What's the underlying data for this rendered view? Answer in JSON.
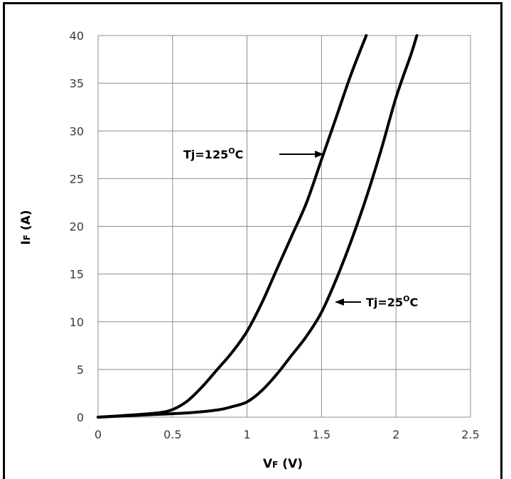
{
  "chart_data": {
    "type": "line",
    "title": "",
    "xlabel_main": "V",
    "xlabel_sub": "F",
    "xlabel_unit": " (V)",
    "ylabel_main": "I",
    "ylabel_sub": "F",
    "ylabel_unit": " (A)",
    "xlim": [
      0,
      2.5
    ],
    "ylim": [
      0,
      40
    ],
    "x_ticks": [
      "0",
      "0.5",
      "1",
      "1.5",
      "2",
      "2.5"
    ],
    "y_ticks": [
      "0",
      "5",
      "10",
      "15",
      "20",
      "25",
      "30",
      "35",
      "40"
    ],
    "grid": true,
    "legend": "none",
    "series": [
      {
        "name": "Tj=125°C",
        "points": [
          [
            0,
            0
          ],
          [
            0.2,
            0.2
          ],
          [
            0.4,
            0.45
          ],
          [
            0.5,
            0.8
          ],
          [
            0.6,
            1.7
          ],
          [
            0.7,
            3.2
          ],
          [
            0.8,
            5
          ],
          [
            0.9,
            6.8
          ],
          [
            1.0,
            9
          ],
          [
            1.1,
            12
          ],
          [
            1.2,
            15.5
          ],
          [
            1.3,
            19
          ],
          [
            1.4,
            22.5
          ],
          [
            1.5,
            27
          ],
          [
            1.6,
            31.5
          ],
          [
            1.7,
            36
          ],
          [
            1.8,
            40
          ]
        ]
      },
      {
        "name": "Tj=25°C",
        "points": [
          [
            0,
            0
          ],
          [
            0.2,
            0.15
          ],
          [
            0.4,
            0.3
          ],
          [
            0.6,
            0.45
          ],
          [
            0.8,
            0.75
          ],
          [
            0.9,
            1.1
          ],
          [
            1.0,
            1.6
          ],
          [
            1.1,
            2.8
          ],
          [
            1.2,
            4.5
          ],
          [
            1.3,
            6.5
          ],
          [
            1.4,
            8.5
          ],
          [
            1.5,
            11
          ],
          [
            1.6,
            14.5
          ],
          [
            1.7,
            18.5
          ],
          [
            1.8,
            23
          ],
          [
            1.9,
            28
          ],
          [
            2.0,
            33.5
          ],
          [
            2.1,
            38
          ],
          [
            2.14,
            40
          ]
        ]
      }
    ],
    "annotations": [
      {
        "main": "Tj=125",
        "sup": "O",
        "tail": "C",
        "arrow": "right"
      },
      {
        "main": "Tj=25",
        "sup": "O",
        "tail": "C",
        "arrow": "left"
      }
    ],
    "line_color": "#000000",
    "grid_color": "#8c8c8c"
  }
}
